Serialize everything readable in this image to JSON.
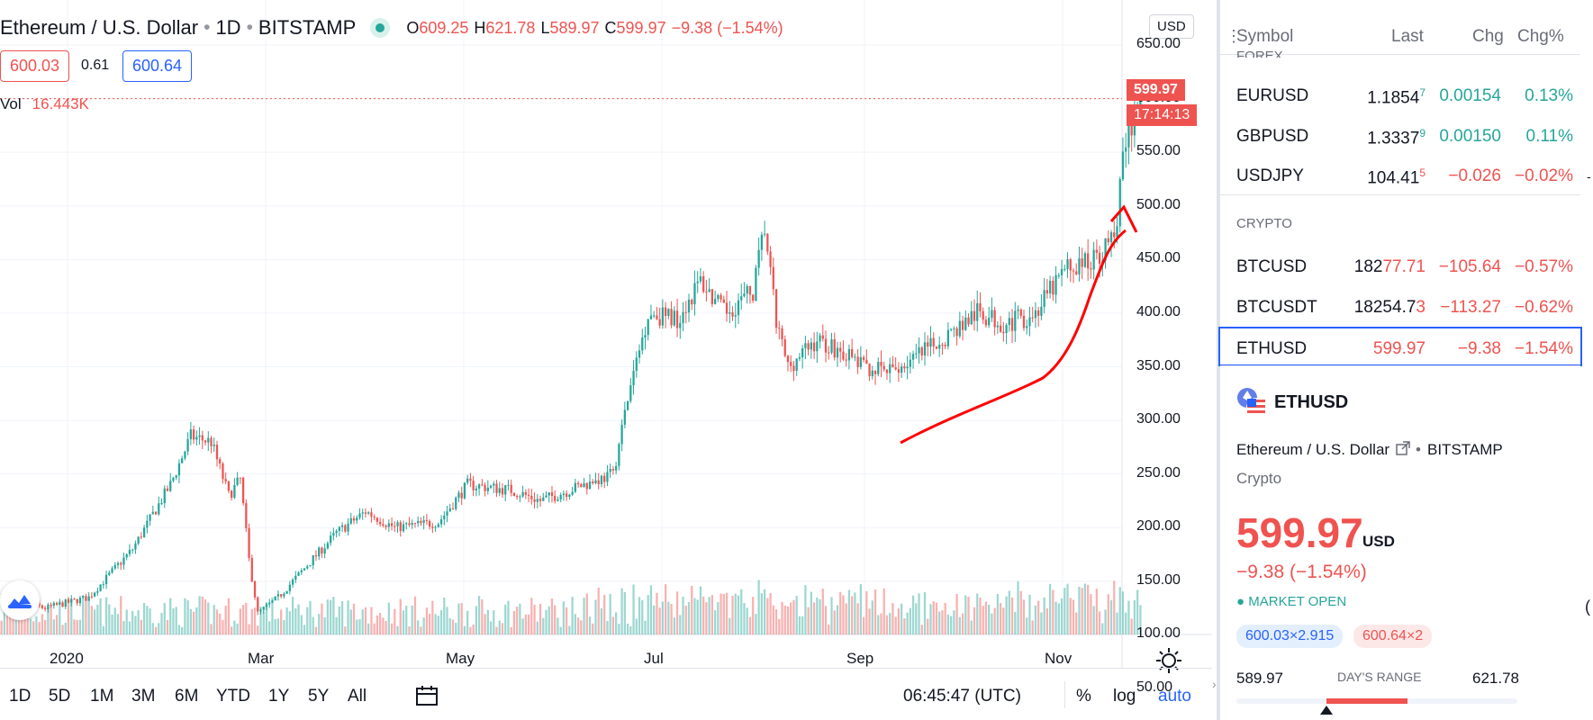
{
  "legend": {
    "title": "Ethereum / U.S. Dollar",
    "interval": "1D",
    "exchange": "BITSTAMP",
    "open_key": "O",
    "open": "609.25",
    "high_key": "H",
    "high": "621.78",
    "low_key": "L",
    "low": "589.97",
    "close_key": "C",
    "close": "599.97",
    "change": "−9.38 (−1.54%)"
  },
  "quote": {
    "bid": "600.03",
    "spread": "0.61",
    "ask": "600.64"
  },
  "volume": {
    "label": "Vol",
    "value": "16.443K"
  },
  "price_axis": {
    "currency": "USD",
    "last_price": "599.97",
    "countdown": "17:14:13",
    "ticks": [
      "650.00",
      "600.00",
      "550.00",
      "500.00",
      "450.00",
      "400.00",
      "350.00",
      "300.00",
      "250.00",
      "200.00",
      "150.00",
      "100.00",
      "50.00"
    ]
  },
  "time_axis": {
    "ticks": [
      "2020",
      "Mar",
      "May",
      "Jul",
      "Sep",
      "Nov"
    ]
  },
  "bottom_toolbar": {
    "timeframes": [
      "1D",
      "5D",
      "1M",
      "3M",
      "6M",
      "YTD",
      "1Y",
      "5Y",
      "All"
    ],
    "clock": "06:45:47 (UTC)",
    "percent": "%",
    "log": "log",
    "auto": "auto"
  },
  "chart_data": {
    "type": "candlestick",
    "symbol": "ETHUSD",
    "x_ticks": [
      "2020",
      "Mar",
      "May",
      "Jul",
      "Sep",
      "Nov"
    ],
    "ylim": [
      50,
      650
    ],
    "approx_closes": [
      {
        "x": "Jan",
        "y": 130
      },
      {
        "x": "Feb",
        "y": 280
      },
      {
        "x": "Mar",
        "y": 130
      },
      {
        "x": "Apr",
        "y": 205
      },
      {
        "x": "May",
        "y": 210
      },
      {
        "x": "Jun",
        "y": 240
      },
      {
        "x": "Jul",
        "y": 245
      },
      {
        "x": "Aug",
        "y": 395
      },
      {
        "x": "Sep",
        "y": 355
      },
      {
        "x": "Oct",
        "y": 375
      },
      {
        "x": "Nov",
        "y": 600
      }
    ]
  },
  "watchlist": {
    "headers": {
      "symbol": "Symbol",
      "last": "Last",
      "chg": "Chg",
      "chg_pct": "Chg%"
    },
    "section_forex": "FOREX",
    "section_crypto": "CRYPTO",
    "rows": [
      {
        "symbol": "EURUSD",
        "last_a": "1.1854",
        "last_b": "7",
        "chg": "0.00154",
        "chg_pct": "0.13%",
        "dir": "up"
      },
      {
        "symbol": "GBPUSD",
        "last_a": "1.3337",
        "last_b": "9",
        "chg": "0.00150",
        "chg_pct": "0.11%",
        "dir": "up"
      },
      {
        "symbol": "USDJPY",
        "last_a": "104.41",
        "last_b": "5",
        "chg": "−0.026",
        "chg_pct": "−0.02%",
        "dir": "down"
      },
      {
        "symbol": "BTCUSD",
        "last_a": "182",
        "last_b": "77.71",
        "chg": "−105.64",
        "chg_pct": "−0.57%",
        "dir": "down"
      },
      {
        "symbol": "BTCUSDT",
        "last_a": "18254.7",
        "last_b": "3",
        "chg": "−113.27",
        "chg_pct": "−0.62%",
        "dir": "down"
      },
      {
        "symbol": "ETHUSD",
        "last_a": "599.97",
        "last_b": "",
        "chg": "−9.38",
        "chg_pct": "−1.54%",
        "dir": "down"
      }
    ]
  },
  "details": {
    "symbol": "ETHUSD",
    "name": "Ethereum / U.S. Dollar",
    "exchange": "BITSTAMP",
    "type": "Crypto",
    "price": "599.97",
    "currency": "USD",
    "change": "−9.38 (−1.54%)",
    "status": "MARKET OPEN",
    "bid": "600.03×2.915",
    "ask": "600.64×2",
    "range_low": "589.97",
    "range_label": "DAY'S RANGE",
    "range_high": "621.78",
    "range_position": 0.32
  },
  "colors": {
    "up": "#26a69a",
    "down": "#ef5350",
    "accent": "#2962ff"
  }
}
